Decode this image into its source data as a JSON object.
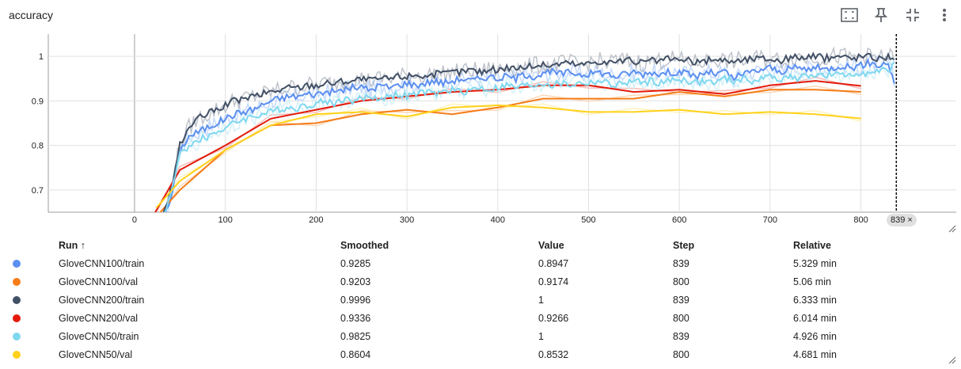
{
  "card": {
    "title": "accuracy"
  },
  "toolbar": {
    "icons": [
      "fit-domain-icon",
      "pin-icon",
      "collapse-icon",
      "more-vert-icon"
    ]
  },
  "chart_data": {
    "type": "line",
    "title": "accuracy",
    "xlabel": "",
    "ylabel": "",
    "xlim": [
      -95,
      905
    ],
    "ylim": [
      0.65,
      1.05
    ],
    "x_ticks": [
      0,
      100,
      200,
      300,
      400,
      500,
      600,
      700,
      800
    ],
    "y_ticks": [
      0.7,
      0.8,
      0.9,
      1
    ],
    "grid": true,
    "step_marker": {
      "step": 839,
      "label": "839 ×"
    },
    "series": [
      {
        "name": "GloveCNN100/train",
        "color": "#5b8ff0",
        "raw_color": "#bcd3fa",
        "x": [
          30,
          40,
          50,
          60,
          70,
          80,
          90,
          100,
          110,
          120,
          130,
          140,
          150,
          160,
          170,
          180,
          190,
          200,
          210,
          220,
          230,
          240,
          250,
          260,
          270,
          280,
          290,
          300,
          310,
          320,
          330,
          340,
          350,
          360,
          370,
          380,
          390,
          400,
          410,
          420,
          430,
          440,
          450,
          460,
          470,
          480,
          490,
          500,
          510,
          520,
          530,
          540,
          550,
          560,
          570,
          580,
          590,
          600,
          610,
          620,
          630,
          640,
          650,
          660,
          670,
          680,
          690,
          700,
          710,
          720,
          730,
          740,
          750,
          760,
          770,
          780,
          790,
          800,
          810,
          820,
          830,
          839
        ],
        "y": [
          0.62,
          0.68,
          0.79,
          0.82,
          0.83,
          0.84,
          0.85,
          0.86,
          0.87,
          0.875,
          0.88,
          0.89,
          0.9,
          0.905,
          0.91,
          0.91,
          0.915,
          0.915,
          0.92,
          0.92,
          0.925,
          0.93,
          0.93,
          0.925,
          0.935,
          0.93,
          0.935,
          0.94,
          0.935,
          0.94,
          0.945,
          0.94,
          0.945,
          0.95,
          0.945,
          0.95,
          0.955,
          0.95,
          0.955,
          0.95,
          0.96,
          0.955,
          0.96,
          0.965,
          0.96,
          0.965,
          0.96,
          0.96,
          0.965,
          0.96,
          0.955,
          0.96,
          0.965,
          0.96,
          0.965,
          0.96,
          0.965,
          0.965,
          0.96,
          0.955,
          0.965,
          0.96,
          0.965,
          0.95,
          0.96,
          0.965,
          0.97,
          0.975,
          0.965,
          0.97,
          0.975,
          0.97,
          0.975,
          0.97,
          0.975,
          0.98,
          0.975,
          0.98,
          0.985,
          0.98,
          0.985,
          0.9285
        ]
      },
      {
        "name": "GloveCNN100/val",
        "color": "#f57c17",
        "raw_color": "#fcd1ad",
        "x": [
          24,
          50,
          100,
          150,
          200,
          250,
          300,
          350,
          400,
          450,
          500,
          550,
          600,
          650,
          700,
          750,
          800
        ],
        "y": [
          0.64,
          0.7,
          0.79,
          0.845,
          0.85,
          0.87,
          0.88,
          0.87,
          0.885,
          0.905,
          0.905,
          0.905,
          0.92,
          0.91,
          0.925,
          0.925,
          0.9203
        ]
      },
      {
        "name": "GloveCNN200/train",
        "color": "#425066",
        "raw_color": "#b3b9c2",
        "x": [
          30,
          40,
          50,
          60,
          70,
          80,
          90,
          100,
          110,
          120,
          130,
          140,
          150,
          160,
          170,
          180,
          190,
          200,
          210,
          220,
          230,
          240,
          250,
          260,
          270,
          280,
          290,
          300,
          310,
          320,
          330,
          340,
          350,
          360,
          370,
          380,
          390,
          400,
          410,
          420,
          430,
          440,
          450,
          460,
          470,
          480,
          490,
          500,
          510,
          520,
          530,
          540,
          550,
          560,
          570,
          580,
          590,
          600,
          610,
          620,
          630,
          640,
          650,
          660,
          670,
          680,
          690,
          700,
          710,
          720,
          730,
          740,
          750,
          760,
          770,
          780,
          790,
          800,
          810,
          820,
          830,
          839
        ],
        "y": [
          0.63,
          0.7,
          0.8,
          0.84,
          0.86,
          0.87,
          0.88,
          0.89,
          0.9,
          0.905,
          0.91,
          0.915,
          0.92,
          0.925,
          0.93,
          0.93,
          0.935,
          0.935,
          0.94,
          0.94,
          0.945,
          0.945,
          0.95,
          0.945,
          0.95,
          0.95,
          0.955,
          0.955,
          0.96,
          0.955,
          0.96,
          0.96,
          0.965,
          0.965,
          0.97,
          0.965,
          0.97,
          0.97,
          0.975,
          0.975,
          0.975,
          0.98,
          0.98,
          0.98,
          0.985,
          0.985,
          0.98,
          0.985,
          0.99,
          0.985,
          0.99,
          0.99,
          0.99,
          0.985,
          0.99,
          0.99,
          0.995,
          0.99,
          0.99,
          0.985,
          0.99,
          0.995,
          0.99,
          0.99,
          0.99,
          0.995,
          0.995,
          0.995,
          0.99,
          0.995,
          1.0,
          0.995,
          1.0,
          0.995,
          1.0,
          1.0,
          0.995,
          1.0,
          1.0,
          0.995,
          1.0,
          0.9996
        ]
      },
      {
        "name": "GloveCNN200/val",
        "color": "#e31a0b",
        "raw_color": "#f6b0aa",
        "x": [
          20,
          50,
          100,
          150,
          200,
          250,
          300,
          350,
          400,
          450,
          500,
          550,
          600,
          650,
          700,
          750,
          800
        ],
        "y": [
          0.64,
          0.745,
          0.8,
          0.86,
          0.88,
          0.9,
          0.91,
          0.92,
          0.925,
          0.935,
          0.935,
          0.92,
          0.925,
          0.915,
          0.935,
          0.945,
          0.9336
        ]
      },
      {
        "name": "GloveCNN50/train",
        "color": "#7fd8ef",
        "raw_color": "#cdeff8",
        "x": [
          30,
          40,
          50,
          60,
          70,
          80,
          90,
          100,
          110,
          120,
          130,
          140,
          150,
          160,
          170,
          180,
          190,
          200,
          210,
          220,
          230,
          240,
          250,
          260,
          270,
          280,
          290,
          300,
          310,
          320,
          330,
          340,
          350,
          360,
          370,
          380,
          390,
          400,
          410,
          420,
          430,
          440,
          450,
          460,
          470,
          480,
          490,
          500,
          510,
          520,
          530,
          540,
          550,
          560,
          570,
          580,
          590,
          600,
          610,
          620,
          630,
          640,
          650,
          660,
          670,
          680,
          690,
          700,
          710,
          720,
          730,
          740,
          750,
          760,
          770,
          780,
          790,
          800,
          810,
          820,
          830,
          839
        ],
        "y": [
          0.63,
          0.69,
          0.78,
          0.8,
          0.81,
          0.82,
          0.83,
          0.84,
          0.85,
          0.86,
          0.865,
          0.87,
          0.875,
          0.88,
          0.885,
          0.885,
          0.89,
          0.895,
          0.9,
          0.895,
          0.905,
          0.9,
          0.905,
          0.91,
          0.905,
          0.91,
          0.915,
          0.91,
          0.915,
          0.92,
          0.915,
          0.92,
          0.925,
          0.92,
          0.925,
          0.93,
          0.925,
          0.93,
          0.935,
          0.93,
          0.935,
          0.935,
          0.94,
          0.935,
          0.94,
          0.935,
          0.94,
          0.94,
          0.945,
          0.94,
          0.935,
          0.94,
          0.945,
          0.94,
          0.945,
          0.94,
          0.945,
          0.95,
          0.945,
          0.94,
          0.945,
          0.94,
          0.95,
          0.945,
          0.95,
          0.945,
          0.95,
          0.955,
          0.95,
          0.955,
          0.95,
          0.955,
          0.96,
          0.955,
          0.96,
          0.955,
          0.96,
          0.965,
          0.96,
          0.965,
          0.97,
          0.9825
        ]
      },
      {
        "name": "GloveCNN50/val",
        "color": "#ffd11a",
        "raw_color": "#fff0b0",
        "x": [
          24,
          50,
          100,
          150,
          200,
          250,
          300,
          350,
          400,
          450,
          500,
          550,
          600,
          650,
          700,
          750,
          800
        ],
        "y": [
          0.66,
          0.72,
          0.79,
          0.845,
          0.87,
          0.875,
          0.865,
          0.885,
          0.89,
          0.885,
          0.875,
          0.875,
          0.88,
          0.87,
          0.875,
          0.87,
          0.8604
        ]
      }
    ]
  },
  "table": {
    "headers": {
      "run": "Run ↑",
      "smoothed": "Smoothed",
      "value": "Value",
      "step": "Step",
      "relative": "Relative"
    },
    "rows": [
      {
        "color": "#5b8ff0",
        "run": "GloveCNN100/train",
        "smoothed": "0.9285",
        "value": "0.8947",
        "step": "839",
        "relative": "5.329 min"
      },
      {
        "color": "#f57c17",
        "run": "GloveCNN100/val",
        "smoothed": "0.9203",
        "value": "0.9174",
        "step": "800",
        "relative": "5.06 min"
      },
      {
        "color": "#425066",
        "run": "GloveCNN200/train",
        "smoothed": "0.9996",
        "value": "1",
        "step": "839",
        "relative": "6.333 min"
      },
      {
        "color": "#e31a0b",
        "run": "GloveCNN200/val",
        "smoothed": "0.9336",
        "value": "0.9266",
        "step": "800",
        "relative": "6.014 min"
      },
      {
        "color": "#7fd8ef",
        "run": "GloveCNN50/train",
        "smoothed": "0.9825",
        "value": "1",
        "step": "839",
        "relative": "4.926 min"
      },
      {
        "color": "#ffd11a",
        "run": "GloveCNN50/val",
        "smoothed": "0.8604",
        "value": "0.8532",
        "step": "800",
        "relative": "4.681 min"
      }
    ]
  }
}
